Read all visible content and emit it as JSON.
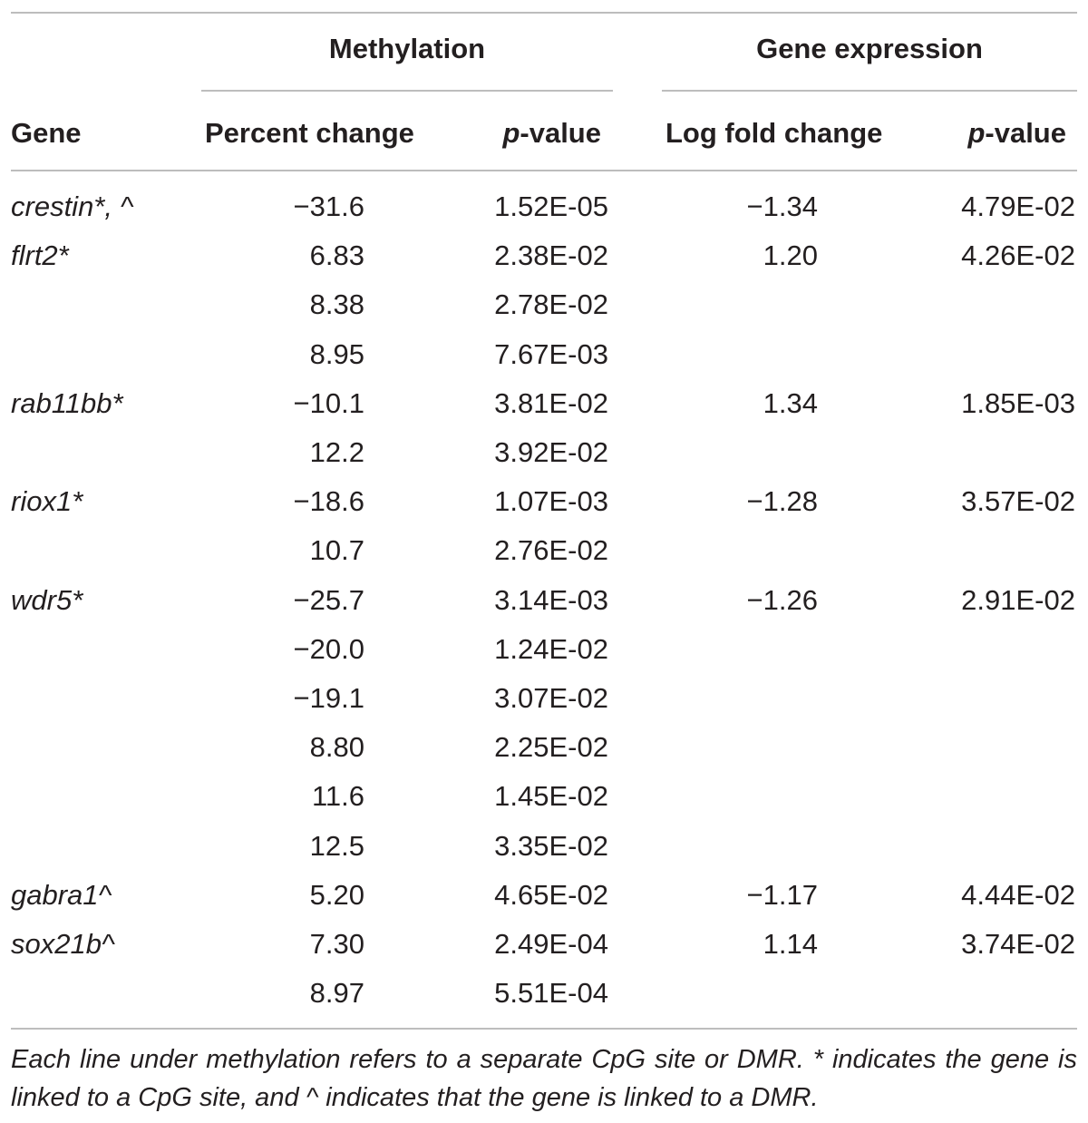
{
  "table": {
    "group_headers": {
      "methylation": "Methylation",
      "expression": "Gene expression"
    },
    "column_headers": {
      "gene": "Gene",
      "percent_change": "Percent change",
      "meth_p_italic": "p",
      "meth_p_rest": "-value",
      "log_fold_change": "Log fold change",
      "expr_p_italic": "p",
      "expr_p_rest": "-value"
    },
    "rows": [
      {
        "gene": "crestin*, ^",
        "pct": "−31.6",
        "mp": "1.52E-05",
        "lfc": "−1.34",
        "ep": "4.79E-02"
      },
      {
        "gene": "flrt2*",
        "pct": "6.83",
        "mp": "2.38E-02",
        "lfc": "1.20",
        "ep": "4.26E-02"
      },
      {
        "gene": "",
        "pct": "8.38",
        "mp": "2.78E-02",
        "lfc": "",
        "ep": ""
      },
      {
        "gene": "",
        "pct": "8.95",
        "mp": "7.67E-03",
        "lfc": "",
        "ep": ""
      },
      {
        "gene": "rab11bb*",
        "pct": "−10.1",
        "mp": "3.81E-02",
        "lfc": "1.34",
        "ep": "1.85E-03"
      },
      {
        "gene": "",
        "pct": "12.2",
        "mp": "3.92E-02",
        "lfc": "",
        "ep": ""
      },
      {
        "gene": "riox1*",
        "pct": "−18.6",
        "mp": "1.07E-03",
        "lfc": "−1.28",
        "ep": "3.57E-02"
      },
      {
        "gene": "",
        "pct": "10.7",
        "mp": "2.76E-02",
        "lfc": "",
        "ep": ""
      },
      {
        "gene": "wdr5*",
        "pct": "−25.7",
        "mp": "3.14E-03",
        "lfc": "−1.26",
        "ep": "2.91E-02"
      },
      {
        "gene": "",
        "pct": "−20.0",
        "mp": "1.24E-02",
        "lfc": "",
        "ep": ""
      },
      {
        "gene": "",
        "pct": "−19.1",
        "mp": "3.07E-02",
        "lfc": "",
        "ep": ""
      },
      {
        "gene": "",
        "pct": "8.80",
        "mp": "2.25E-02",
        "lfc": "",
        "ep": ""
      },
      {
        "gene": "",
        "pct": "11.6",
        "mp": "1.45E-02",
        "lfc": "",
        "ep": ""
      },
      {
        "gene": "",
        "pct": "12.5",
        "mp": "3.35E-02",
        "lfc": "",
        "ep": ""
      },
      {
        "gene": "gabra1^",
        "pct": "5.20",
        "mp": "4.65E-02",
        "lfc": "−1.17",
        "ep": "4.44E-02"
      },
      {
        "gene": "sox21b^",
        "pct": "7.30",
        "mp": "2.49E-04",
        "lfc": "1.14",
        "ep": "3.74E-02"
      },
      {
        "gene": "",
        "pct": "8.97",
        "mp": "5.51E-04",
        "lfc": "",
        "ep": ""
      }
    ],
    "footnote": "Each line under methylation refers to a separate CpG site or DMR. * indicates the gene is linked to a CpG site, and ^ indicates that the gene is linked to a DMR."
  }
}
